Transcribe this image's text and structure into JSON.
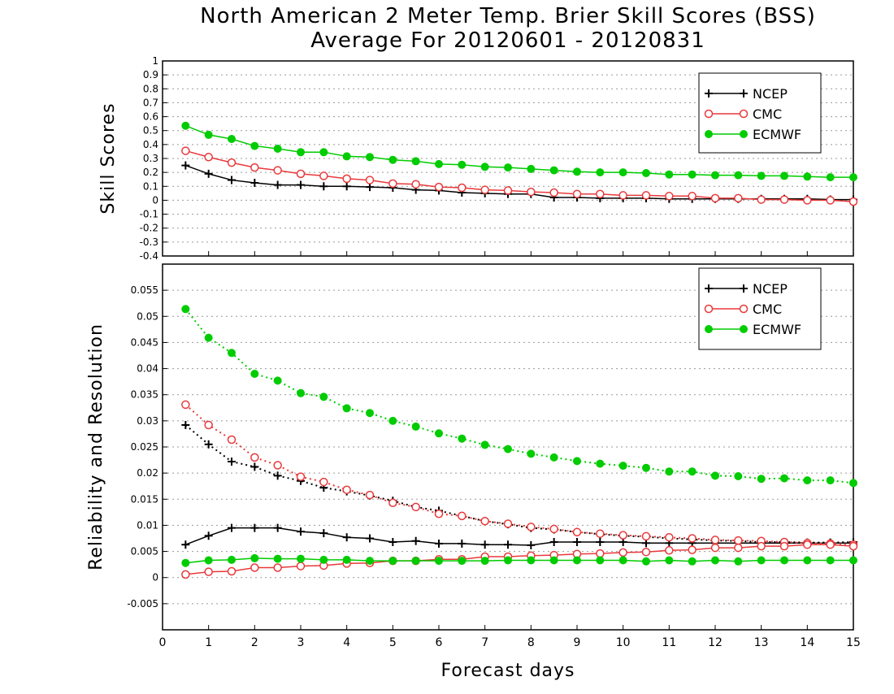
{
  "colors": {
    "NCEP": "#000000",
    "CMC": "#e8393b",
    "ECMWF": "#00cc00",
    "grid": "#999999"
  },
  "chart_data": [
    {
      "type": "line",
      "title": "North American 2 Meter Temp. Brier Skill Scores (BSS)",
      "subtitle": "Average For 20120601 - 20120831",
      "ylabel": "Skill Scores",
      "xlabel": "",
      "ylim": [
        -0.4,
        1
      ],
      "yticks": [
        "-0.4",
        "-0.3",
        "-0.2",
        "-0.1",
        "0",
        "0.1",
        "0.2",
        "0.3",
        "0.4",
        "0.5",
        "0.6",
        "0.7",
        "0.8",
        "0.9",
        "1"
      ],
      "xlim": [
        0,
        15
      ],
      "grid": true,
      "legend_position": "top-right",
      "x": [
        0.5,
        1,
        1.5,
        2,
        2.5,
        3,
        3.5,
        4,
        4.5,
        5,
        5.5,
        6,
        6.5,
        7,
        7.5,
        8,
        8.5,
        9,
        9.5,
        10,
        10.5,
        11,
        11.5,
        12,
        12.5,
        13,
        13.5,
        14,
        14.5,
        15
      ],
      "series": [
        {
          "name": "NCEP",
          "marker": "plus",
          "style": "solid",
          "values": [
            0.25,
            0.19,
            0.145,
            0.125,
            0.11,
            0.11,
            0.1,
            0.1,
            0.095,
            0.09,
            0.075,
            0.07,
            0.055,
            0.05,
            0.045,
            0.045,
            0.02,
            0.02,
            0.015,
            0.015,
            0.015,
            0.01,
            0.01,
            0.01,
            0.01,
            0.01,
            0.01,
            0.01,
            0.005,
            0.005
          ]
        },
        {
          "name": "CMC",
          "marker": "open-circle",
          "style": "solid",
          "values": [
            0.355,
            0.31,
            0.27,
            0.235,
            0.215,
            0.19,
            0.175,
            0.155,
            0.145,
            0.12,
            0.115,
            0.095,
            0.09,
            0.075,
            0.07,
            0.06,
            0.055,
            0.045,
            0.045,
            0.035,
            0.035,
            0.03,
            0.03,
            0.015,
            0.015,
            0.005,
            0.005,
            0.0,
            0.0,
            -0.01
          ]
        },
        {
          "name": "ECMWF",
          "marker": "filled-circle",
          "style": "solid",
          "values": [
            0.535,
            0.47,
            0.44,
            0.39,
            0.37,
            0.345,
            0.345,
            0.315,
            0.31,
            0.29,
            0.28,
            0.26,
            0.255,
            0.24,
            0.235,
            0.225,
            0.215,
            0.205,
            0.2,
            0.2,
            0.195,
            0.185,
            0.185,
            0.18,
            0.18,
            0.175,
            0.175,
            0.17,
            0.165,
            0.165
          ]
        }
      ]
    },
    {
      "type": "line",
      "title": "",
      "ylabel": "Reliability and Resolution",
      "xlabel": "Forecast days",
      "ylim": [
        -0.01,
        0.06
      ],
      "yticks": [
        "-0.005",
        "0",
        "0.005",
        "0.01",
        "0.015",
        "0.02",
        "0.025",
        "0.03",
        "0.035",
        "0.04",
        "0.045",
        "0.05",
        "0.055"
      ],
      "xlim": [
        0,
        15
      ],
      "xticks": [
        "0",
        "1",
        "2",
        "3",
        "4",
        "5",
        "6",
        "7",
        "8",
        "9",
        "10",
        "11",
        "12",
        "13",
        "14",
        "15"
      ],
      "grid": true,
      "legend_position": "top-right",
      "x": [
        0.5,
        1,
        1.5,
        2,
        2.5,
        3,
        3.5,
        4,
        4.5,
        5,
        5.5,
        6,
        6.5,
        7,
        7.5,
        8,
        8.5,
        9,
        9.5,
        10,
        10.5,
        11,
        11.5,
        12,
        12.5,
        13,
        13.5,
        14,
        14.5,
        15
      ],
      "series": [
        {
          "name": "NCEP",
          "marker": "plus",
          "style": "dotted",
          "role": "resolution",
          "values": [
            0.0292,
            0.0255,
            0.0222,
            0.0212,
            0.0195,
            0.0185,
            0.0172,
            0.0165,
            0.0157,
            0.0147,
            0.0135,
            0.0128,
            0.0118,
            0.0108,
            0.0102,
            0.0095,
            0.0092,
            0.0087,
            0.0083,
            0.008,
            0.0078,
            0.0075,
            0.0073,
            0.0071,
            0.007,
            0.0068,
            0.0068,
            0.0067,
            0.0067,
            0.0068
          ]
        },
        {
          "name": "NCEP",
          "marker": "plus",
          "style": "solid",
          "role": "reliability",
          "values": [
            0.0063,
            0.008,
            0.0095,
            0.0095,
            0.0095,
            0.0088,
            0.0085,
            0.0077,
            0.0075,
            0.0068,
            0.007,
            0.0065,
            0.0065,
            0.0063,
            0.0063,
            0.0062,
            0.0068,
            0.0068,
            0.0068,
            0.0068,
            0.0066,
            0.0066,
            0.0066,
            0.0066,
            0.0066,
            0.0066,
            0.0066,
            0.0066,
            0.0066,
            0.0066
          ]
        },
        {
          "name": "CMC",
          "marker": "open-circle",
          "style": "dotted",
          "role": "resolution",
          "values": [
            0.0331,
            0.0292,
            0.0264,
            0.023,
            0.0215,
            0.0193,
            0.0183,
            0.0168,
            0.0158,
            0.0143,
            0.0135,
            0.0122,
            0.0118,
            0.0108,
            0.0103,
            0.0097,
            0.0093,
            0.0087,
            0.0084,
            0.0081,
            0.0079,
            0.0077,
            0.0075,
            0.0072,
            0.0071,
            0.007,
            0.0068,
            0.0066,
            0.0065,
            0.0063
          ]
        },
        {
          "name": "CMC",
          "marker": "open-circle",
          "style": "solid",
          "role": "reliability",
          "values": [
            0.0006,
            0.0011,
            0.0012,
            0.0019,
            0.0019,
            0.0022,
            0.0023,
            0.0027,
            0.0028,
            0.0032,
            0.0032,
            0.0035,
            0.0035,
            0.004,
            0.004,
            0.0042,
            0.0043,
            0.0045,
            0.0046,
            0.0048,
            0.0049,
            0.0052,
            0.0053,
            0.0057,
            0.0057,
            0.006,
            0.006,
            0.0063,
            0.0063,
            0.006
          ]
        },
        {
          "name": "ECMWF",
          "marker": "filled-circle",
          "style": "dotted",
          "role": "resolution",
          "values": [
            0.0514,
            0.0459,
            0.043,
            0.039,
            0.0377,
            0.0353,
            0.0346,
            0.0324,
            0.0315,
            0.03,
            0.0289,
            0.0276,
            0.0266,
            0.0254,
            0.0246,
            0.0237,
            0.023,
            0.0223,
            0.0218,
            0.0214,
            0.021,
            0.0203,
            0.0203,
            0.0195,
            0.0194,
            0.0189,
            0.019,
            0.0186,
            0.0186,
            0.0181
          ]
        },
        {
          "name": "ECMWF",
          "marker": "filled-circle",
          "style": "solid",
          "role": "reliability",
          "values": [
            0.0028,
            0.0033,
            0.0034,
            0.0037,
            0.0036,
            0.0036,
            0.0034,
            0.0034,
            0.0032,
            0.0032,
            0.0032,
            0.0032,
            0.0032,
            0.0032,
            0.0033,
            0.0033,
            0.0033,
            0.0033,
            0.0033,
            0.0033,
            0.0031,
            0.0033,
            0.0031,
            0.0033,
            0.0031,
            0.0033,
            0.0033,
            0.0033,
            0.0033,
            0.0033
          ]
        }
      ]
    }
  ]
}
